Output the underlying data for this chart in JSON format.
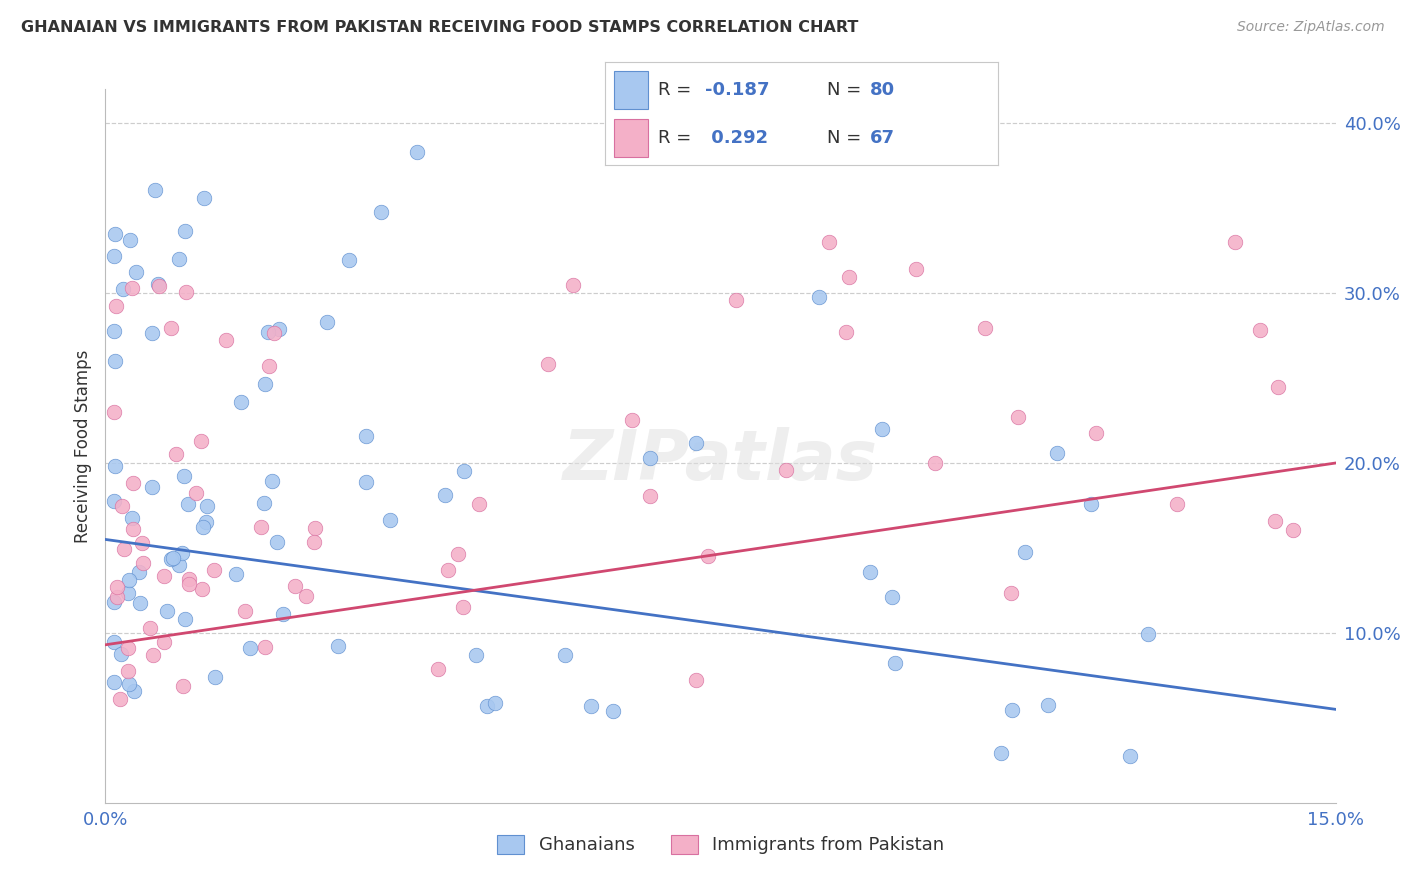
{
  "title": "GHANAIAN VS IMMIGRANTS FROM PAKISTAN RECEIVING FOOD STAMPS CORRELATION CHART",
  "source": "Source: ZipAtlas.com",
  "ylabel": "Receiving Food Stamps",
  "background_color": "#ffffff",
  "grid_color": "#c8c8c8",
  "blue_color": "#a8c8f0",
  "pink_color": "#f4b0c8",
  "blue_edge_color": "#6090d0",
  "pink_edge_color": "#d870a0",
  "blue_line_color": "#4472c4",
  "pink_line_color": "#d04870",
  "text_color_dark": "#333333",
  "text_color_blue": "#4472c4",
  "text_color_source": "#999999",
  "blue_r": "-0.187",
  "blue_n": "80",
  "pink_r": "0.292",
  "pink_n": "67",
  "label_blue": "Ghanaians",
  "label_pink": "Immigrants from Pakistan",
  "x_min": 0.0,
  "x_max": 0.15,
  "y_min": 0.0,
  "y_max": 0.42,
  "blue_line_x0": 0.0,
  "blue_line_y0": 0.155,
  "blue_line_x1": 0.15,
  "blue_line_y1": 0.055,
  "pink_line_x0": 0.0,
  "pink_line_y0": 0.093,
  "pink_line_x1": 0.15,
  "pink_line_y1": 0.2,
  "right_yticks": [
    0.1,
    0.2,
    0.3,
    0.4
  ],
  "right_yticklabels": [
    "10.0%",
    "20.0%",
    "30.0%",
    "40.0%"
  ],
  "title_fontsize": 11.5,
  "tick_fontsize": 13,
  "legend_fontsize": 13,
  "dot_size": 110
}
